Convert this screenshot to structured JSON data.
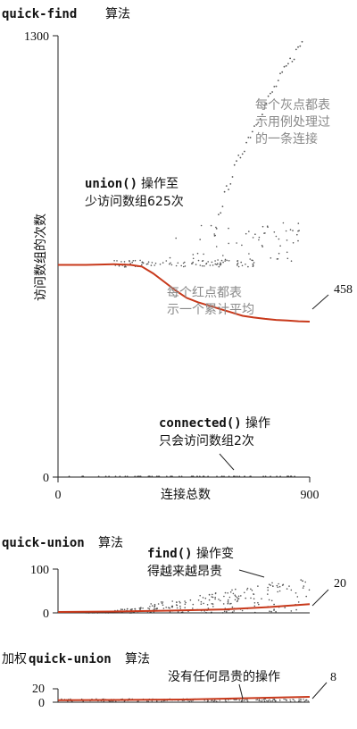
{
  "colors": {
    "axis": "#222222",
    "gray_dots": "#555555",
    "red_avg": "#c8391b",
    "note_gray": "#8a8a8a",
    "text": "#111111"
  },
  "chart_data": [
    {
      "type": "scatter",
      "title_code": "quick-find",
      "title_suffix": "算法",
      "xlabel": "连接总数",
      "ylabel": "访问数组的次数",
      "xlim": [
        0,
        900
      ],
      "ylim": [
        0,
        1300
      ],
      "x_ticks": [
        "0",
        "900"
      ],
      "y_ticks": [
        "0",
        "1300"
      ],
      "annotations": {
        "gray_note": [
          "每个灰点都表",
          "示用例处理过",
          "的一条连接"
        ],
        "red_note": [
          "每个红点都表",
          "示一个累计平均"
        ],
        "union_code": "union()",
        "union_text_1": "操作至",
        "union_text_2": "少访问数组625次",
        "connected_code": "connected()",
        "connected_text_1": "操作",
        "connected_text_2": "只会访问数组2次",
        "end_value": "458"
      },
      "series": [
        {
          "name": "cumulative average",
          "points": [
            [
              0,
              625
            ],
            [
              100,
              625
            ],
            [
              200,
              627
            ],
            [
              260,
              625
            ],
            [
              300,
              620
            ],
            [
              340,
              600
            ],
            [
              380,
              575
            ],
            [
              420,
              550
            ],
            [
              460,
              528
            ],
            [
              500,
              515
            ],
            [
              540,
              505
            ],
            [
              580,
              495
            ],
            [
              620,
              485
            ],
            [
              660,
              475
            ],
            [
              700,
              470
            ],
            [
              740,
              466
            ],
            [
              780,
              463
            ],
            [
              820,
              461
            ],
            [
              860,
              459
            ],
            [
              900,
              458
            ]
          ]
        }
      ]
    },
    {
      "type": "scatter",
      "title_code": "quick-union",
      "title_suffix": "算法",
      "xlim": [
        0,
        900
      ],
      "ylim": [
        0,
        100
      ],
      "y_ticks": [
        "0",
        "100"
      ],
      "annotations": {
        "find_code": "find()",
        "find_text_1": "操作变",
        "find_text_2": "得越来越昂贵",
        "end_value": "20"
      },
      "series": [
        {
          "name": "cumulative average",
          "points": [
            [
              0,
              2
            ],
            [
              200,
              3
            ],
            [
              400,
              5
            ],
            [
              600,
              8
            ],
            [
              750,
              13
            ],
            [
              900,
              20
            ]
          ]
        }
      ]
    },
    {
      "type": "scatter",
      "title_prefix": "加权",
      "title_code": "quick-union",
      "title_suffix": "算法",
      "xlim": [
        0,
        900
      ],
      "ylim": [
        0,
        20
      ],
      "y_ticks": [
        "0",
        "20"
      ],
      "annotations": {
        "note": "没有任何昂贵的操作",
        "end_value": "8"
      },
      "series": [
        {
          "name": "cumulative average",
          "points": [
            [
              0,
              3
            ],
            [
              450,
              4
            ],
            [
              900,
              8
            ]
          ]
        }
      ]
    }
  ]
}
